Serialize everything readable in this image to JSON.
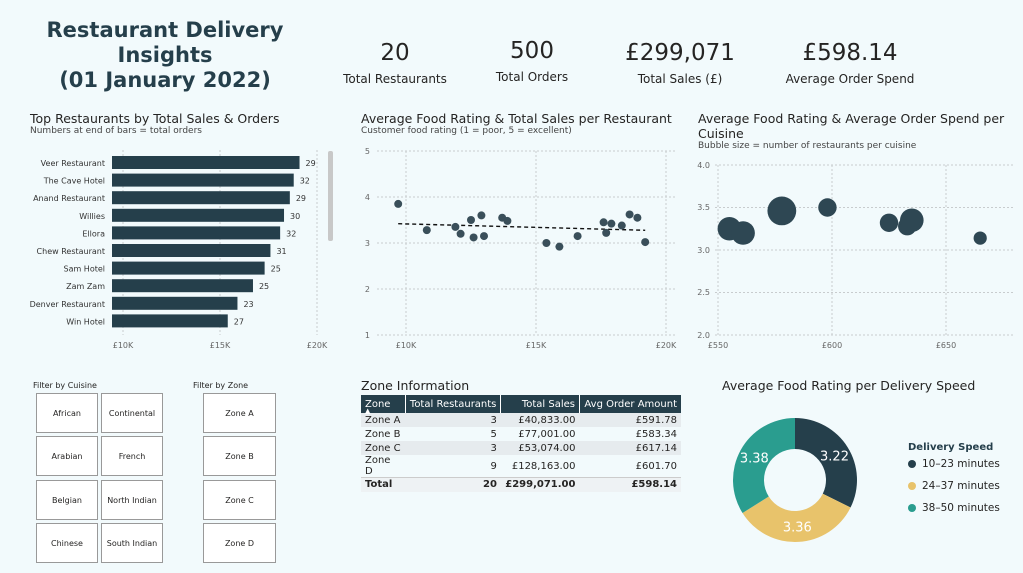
{
  "header": {
    "title_line1": "Restaurant Delivery",
    "title_line2": "Insights",
    "title_line3": "(01 January 2022)"
  },
  "kpis": [
    {
      "value": "20",
      "label": "Total Restaurants"
    },
    {
      "value": "500",
      "label": "Total Orders"
    },
    {
      "value": "£299,071",
      "label": "Total Sales (£)"
    },
    {
      "value": "£598.14",
      "label": "Average Order Spend"
    }
  ],
  "colors": {
    "primary": "#253f4b",
    "yellow": "#e8c36b",
    "teal": "#2a9d8f",
    "background": "#f2fafc"
  },
  "bar_chart": {
    "title": "Top Restaurants by Total Sales & Orders",
    "subtitle": "Numbers at end of bars = total orders",
    "x_ticks": [
      "£10K",
      "£15K",
      "£20K"
    ]
  },
  "scatter_chart": {
    "title": "Average Food Rating & Total Sales per Restaurant",
    "subtitle": "Customer food rating (1 = poor, 5 = excellent)",
    "x_ticks": [
      "£10K",
      "£15K",
      "£20K"
    ],
    "y_ticks": [
      "1",
      "2",
      "3",
      "4",
      "5"
    ]
  },
  "bubble_chart": {
    "title_line1": "Average Food Rating & Average Order Spend per",
    "title_line2": "Cuisine",
    "subtitle": "Bubble size = number of restaurants per cuisine",
    "x_ticks": [
      "£550",
      "£600",
      "£650"
    ],
    "y_ticks": [
      "2.0",
      "2.5",
      "3.0",
      "3.5",
      "4.0"
    ]
  },
  "slicers": {
    "cuisine_label": "Filter by Cuisine",
    "cuisines": [
      "African",
      "Continental",
      "Arabian",
      "French",
      "Belgian",
      "North Indian",
      "Chinese",
      "South Indian"
    ],
    "zone_label": "Filter by Zone",
    "zones": [
      "Zone A",
      "Zone B",
      "Zone C",
      "Zone D"
    ]
  },
  "zone_table": {
    "title": "Zone Information",
    "headers": [
      "Zone",
      "Total Restaurants",
      "Total Sales",
      "Avg Order Amount"
    ],
    "sort_indicator": "▲",
    "rows": [
      [
        "Zone A",
        "3",
        "£40,833.00",
        "£591.78"
      ],
      [
        "Zone B",
        "5",
        "£77,001.00",
        "£583.34"
      ],
      [
        "Zone C",
        "3",
        "£53,074.00",
        "£617.14"
      ],
      [
        "Zone D",
        "9",
        "£128,163.00",
        "£601.70"
      ]
    ],
    "total": [
      "Total",
      "20",
      "£299,071.00",
      "£598.14"
    ]
  },
  "donut_chart": {
    "title": "Average Food Rating per Delivery Speed",
    "legend_title": "Delivery Speed",
    "legend": [
      "10–23 minutes",
      "24–37 minutes",
      "38–50 minutes"
    ],
    "labels": [
      "3.22",
      "3.36",
      "3.38"
    ]
  },
  "chart_data": [
    {
      "type": "bar",
      "title": "Top Restaurants by Total Sales & Orders",
      "subtitle": "Numbers at end of bars = total orders",
      "categories": [
        "Veer Restaurant",
        "The Cave Hotel",
        "Anand Restaurant",
        "Willies",
        "Ellora",
        "Chew Restaurant",
        "Sam Hotel",
        "Zam Zam",
        "Denver Restaurant",
        "Win Hotel"
      ],
      "values": [
        19100,
        18800,
        18600,
        18300,
        18100,
        17600,
        17300,
        16700,
        15900,
        15400
      ],
      "orders": [
        29,
        32,
        29,
        30,
        32,
        31,
        25,
        25,
        23,
        27
      ],
      "xlim": [
        10000,
        20000
      ],
      "orientation": "horizontal",
      "color": "#253f4b"
    },
    {
      "type": "scatter",
      "title": "Average Food Rating & Total Sales per Restaurant",
      "subtitle": "Customer food rating (1 = poor, 5 = excellent)",
      "x": [
        9700,
        10800,
        11900,
        12100,
        12500,
        12600,
        12900,
        13000,
        13700,
        13900,
        15400,
        15900,
        16600,
        17600,
        17700,
        17900,
        18300,
        18600,
        18900,
        19200
      ],
      "y": [
        3.85,
        3.28,
        3.35,
        3.2,
        3.5,
        3.12,
        3.6,
        3.15,
        3.55,
        3.48,
        3.0,
        2.92,
        3.15,
        3.45,
        3.22,
        3.42,
        3.38,
        3.62,
        3.55,
        3.02
      ],
      "trendline": true,
      "xlim": [
        10000,
        20000
      ],
      "ylim": [
        1,
        5
      ],
      "grid": true
    },
    {
      "type": "scatter",
      "title": "Average Food Rating & Average Order Spend per Cuisine",
      "subtitle": "Bubble size = number of restaurants per cuisine",
      "x": [
        555,
        561,
        578,
        598,
        625,
        633,
        635,
        665
      ],
      "y": [
        3.25,
        3.2,
        3.46,
        3.5,
        3.32,
        3.28,
        3.35,
        3.14
      ],
      "size": [
        3,
        3,
        4,
        2,
        2,
        2,
        3,
        1
      ],
      "xlim": [
        550,
        670
      ],
      "ylim": [
        2.0,
        4.0
      ],
      "grid": true
    },
    {
      "type": "pie",
      "title": "Average Food Rating per Delivery Speed",
      "categories": [
        "10–23 minutes",
        "24–37 minutes",
        "38–50 minutes"
      ],
      "values": [
        3.22,
        3.36,
        3.38
      ],
      "colors": [
        "#253f4b",
        "#e8c36b",
        "#2a9d8f"
      ],
      "donut": true,
      "legend": "right"
    }
  ]
}
